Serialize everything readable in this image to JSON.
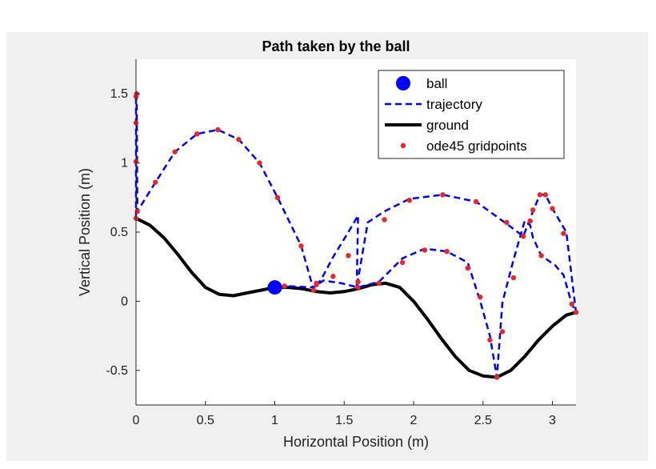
{
  "chart_data": {
    "type": "line",
    "title": "Path taken by the ball",
    "xlabel": "Horizontal Position (m)",
    "ylabel": "Vertical Position (m)",
    "xlim": [
      0,
      3.17
    ],
    "ylim": [
      -0.75,
      1.75
    ],
    "xticks": [
      0,
      0.5,
      1,
      1.5,
      2,
      2.5,
      3
    ],
    "xtick_labels": [
      "0",
      "0.5",
      "1",
      "1.5",
      "2",
      "2.5",
      "3"
    ],
    "yticks": [
      -0.5,
      0,
      0.5,
      1,
      1.5
    ],
    "ytick_labels": [
      "-0.5",
      "0",
      "0.5",
      "1",
      "1.5"
    ],
    "grid": false,
    "legend_position": "top-right",
    "series": [
      {
        "name": "ball",
        "style": "marker",
        "color": "#0000ff",
        "x": [
          1.0
        ],
        "y": [
          0.1
        ]
      },
      {
        "name": "trajectory",
        "style": "dashed",
        "color": "#0000ff",
        "x": [
          0,
          0,
          0,
          0,
          0,
          0.005,
          0.01,
          0.14,
          0.28,
          0.44,
          0.59,
          0.74,
          0.89,
          1.02,
          1.19,
          1.28,
          1.3,
          1.33,
          1.42,
          1.53,
          1.6,
          1.59,
          1.67,
          1.79,
          1.97,
          2.21,
          2.45,
          2.67,
          2.79,
          2.86,
          2.91,
          2.95,
          3.0,
          3.1,
          3.17,
          3.14,
          3.08,
          3.02,
          2.92,
          2.86,
          2.84,
          2.8,
          2.72,
          2.64,
          2.6,
          2.55,
          2.48,
          2.39,
          2.24,
          2.08,
          1.92,
          1.75,
          1.6,
          1.48,
          1.35,
          1.28,
          1.07,
          1.0
        ],
        "y": [
          0.6,
          0.85,
          1.15,
          1.4,
          1.5,
          1.5,
          0.65,
          0.86,
          1.08,
          1.21,
          1.24,
          1.17,
          1.0,
          0.75,
          0.4,
          0.08,
          0.12,
          0.15,
          0.32,
          0.5,
          0.62,
          0.1,
          0.57,
          0.65,
          0.74,
          0.77,
          0.72,
          0.56,
          0.47,
          0.65,
          0.77,
          0.77,
          0.67,
          0.5,
          -0.08,
          -0.02,
          0.19,
          0.26,
          0.33,
          0.46,
          0.55,
          0.58,
          0.3,
          -0.01,
          -0.55,
          -0.25,
          0.0,
          0.28,
          0.36,
          0.38,
          0.31,
          0.14,
          0.1,
          0.13,
          0.15,
          0.1,
          0.11,
          0.1
        ]
      },
      {
        "name": "ground",
        "style": "solid",
        "color": "#000000",
        "x": [
          0,
          0.1,
          0.2,
          0.3,
          0.4,
          0.5,
          0.6,
          0.7,
          0.8,
          0.9,
          1.0,
          1.1,
          1.2,
          1.3,
          1.4,
          1.5,
          1.6,
          1.7,
          1.8,
          1.9,
          2.0,
          2.1,
          2.2,
          2.3,
          2.4,
          2.5,
          2.6,
          2.7,
          2.8,
          2.9,
          3.0,
          3.1,
          3.17
        ],
        "y": [
          0.6,
          0.55,
          0.46,
          0.34,
          0.21,
          0.1,
          0.05,
          0.04,
          0.06,
          0.08,
          0.1,
          0.1,
          0.09,
          0.07,
          0.06,
          0.07,
          0.09,
          0.12,
          0.13,
          0.1,
          0.0,
          -0.13,
          -0.27,
          -0.4,
          -0.5,
          -0.54,
          -0.55,
          -0.5,
          -0.4,
          -0.28,
          -0.18,
          -0.1,
          -0.08
        ]
      },
      {
        "name": "ode45 gridpoints",
        "style": "points",
        "color": "#e8262d",
        "x": [
          0,
          0,
          0,
          0,
          0.005,
          0.01,
          0.14,
          0.28,
          0.44,
          0.59,
          0.74,
          0.89,
          1.02,
          1.19,
          1.28,
          1.3,
          1.07,
          1.42,
          1.53,
          1.6,
          1.79,
          1.97,
          2.21,
          2.45,
          2.67,
          2.79,
          2.86,
          2.91,
          2.95,
          3.0,
          3.08,
          3.14,
          3.17,
          2.92,
          2.84,
          2.72,
          2.64,
          2.6,
          2.55,
          2.48,
          2.39,
          2.24,
          2.08,
          1.92,
          1.75,
          1.6,
          1.3
        ],
        "y": [
          0.6,
          1.01,
          1.29,
          1.48,
          1.5,
          0.65,
          0.86,
          1.08,
          1.21,
          1.24,
          1.17,
          1.0,
          0.75,
          0.4,
          0.08,
          0.12,
          0.11,
          0.18,
          0.33,
          0.1,
          0.59,
          0.73,
          0.77,
          0.72,
          0.57,
          0.47,
          0.66,
          0.77,
          0.77,
          0.67,
          0.49,
          -0.02,
          -0.08,
          0.33,
          0.58,
          0.17,
          -0.22,
          -0.55,
          -0.28,
          0.03,
          0.24,
          0.36,
          0.37,
          0.28,
          0.13,
          0.14,
          0.13
        ]
      }
    ]
  }
}
